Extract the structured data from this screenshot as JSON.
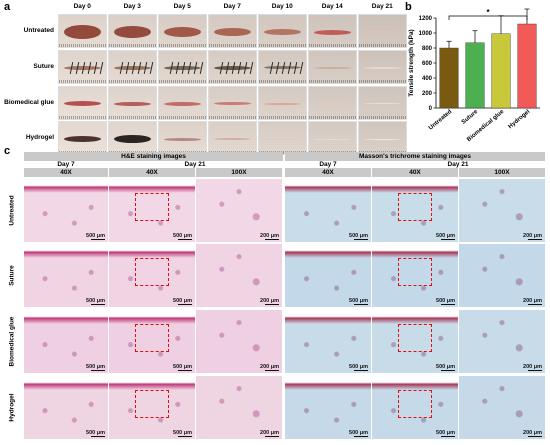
{
  "panel_a": {
    "letter": "a",
    "days": [
      "Day 0",
      "Day 3",
      "Day 5",
      "Day 7",
      "Day 10",
      "Day 14",
      "Day 21"
    ],
    "rows": [
      "Untreated",
      "Suture",
      "Biomedical glue",
      "Hydrogel"
    ]
  },
  "panel_b": {
    "letter": "b",
    "ylabel": "Tensile strength (kPa)",
    "yticks": [
      "0",
      "200",
      "400",
      "600",
      "800",
      "1000",
      "1200"
    ],
    "significance": "*"
  },
  "chart_data": {
    "type": "bar",
    "categories": [
      "Untreated",
      "Suture",
      "Biomedical glue",
      "Hydrogel"
    ],
    "values": [
      800,
      870,
      990,
      1120
    ],
    "errors": [
      90,
      160,
      240,
      200
    ],
    "colors": [
      "#7a5a10",
      "#4caf50",
      "#c8c83a",
      "#f25a5a"
    ],
    "ylabel": "Tensile strength (kPa)",
    "ylim": [
      0,
      1200
    ],
    "yticks": [
      0,
      200,
      400,
      600,
      800,
      1000,
      1200
    ],
    "significance": {
      "from": "Untreated",
      "to": "Hydrogel",
      "label": "*"
    }
  },
  "panel_c": {
    "letter": "c",
    "he_title": "H&E staining images",
    "mt_title": "Masson's trichrome staining images",
    "day7": "Day 7",
    "day21": "Day 21",
    "mag40": "40X",
    "mag100": "100X",
    "rows": [
      "Untreated",
      "Suture",
      "Biomedical glue",
      "Hydrogel"
    ],
    "scale_500": "500 μm",
    "scale_200": "200 μm"
  }
}
